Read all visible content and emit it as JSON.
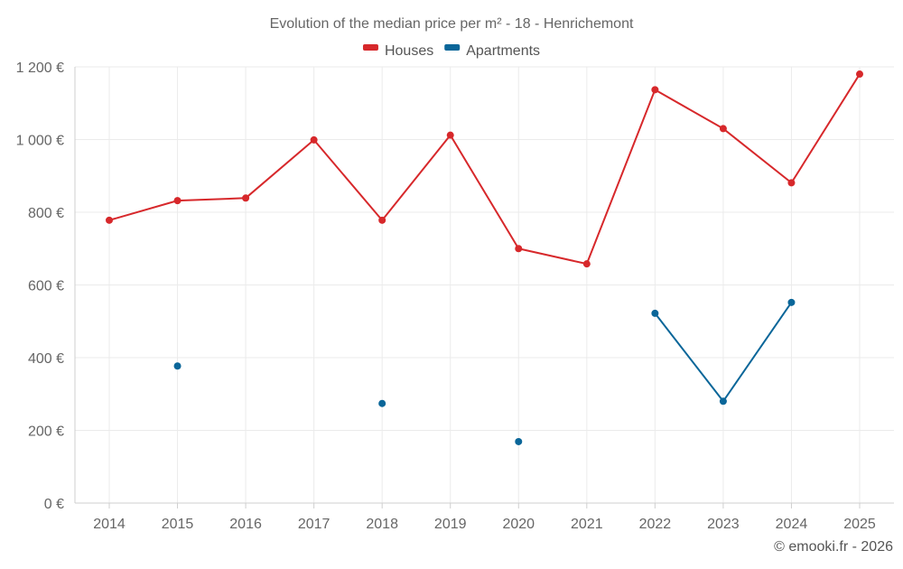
{
  "chart_data": {
    "type": "line",
    "title": "Evolution of the median price per m² - 18 - Henrichemont",
    "xlabel": "",
    "ylabel": "",
    "categories": [
      "2014",
      "2015",
      "2016",
      "2017",
      "2018",
      "2019",
      "2020",
      "2021",
      "2022",
      "2023",
      "2024",
      "2025"
    ],
    "ylim": [
      0,
      1200
    ],
    "yticks": [
      0,
      200,
      400,
      600,
      800,
      1000,
      1200
    ],
    "ytick_labels": [
      "0 €",
      "200 €",
      "400 €",
      "600 €",
      "800 €",
      "1 000 €",
      "1 200 €"
    ],
    "grid": true,
    "legend_position": "top-center",
    "series": [
      {
        "name": "Houses",
        "color": "#d7282b",
        "values": [
          778,
          832,
          839,
          999,
          778,
          1012,
          700,
          658,
          1137,
          1030,
          881,
          1180
        ]
      },
      {
        "name": "Apartments",
        "color": "#0a6699",
        "values": [
          null,
          377,
          null,
          null,
          274,
          null,
          169,
          null,
          522,
          280,
          552,
          null
        ]
      }
    ],
    "credit": "© emooki.fr - 2026"
  }
}
